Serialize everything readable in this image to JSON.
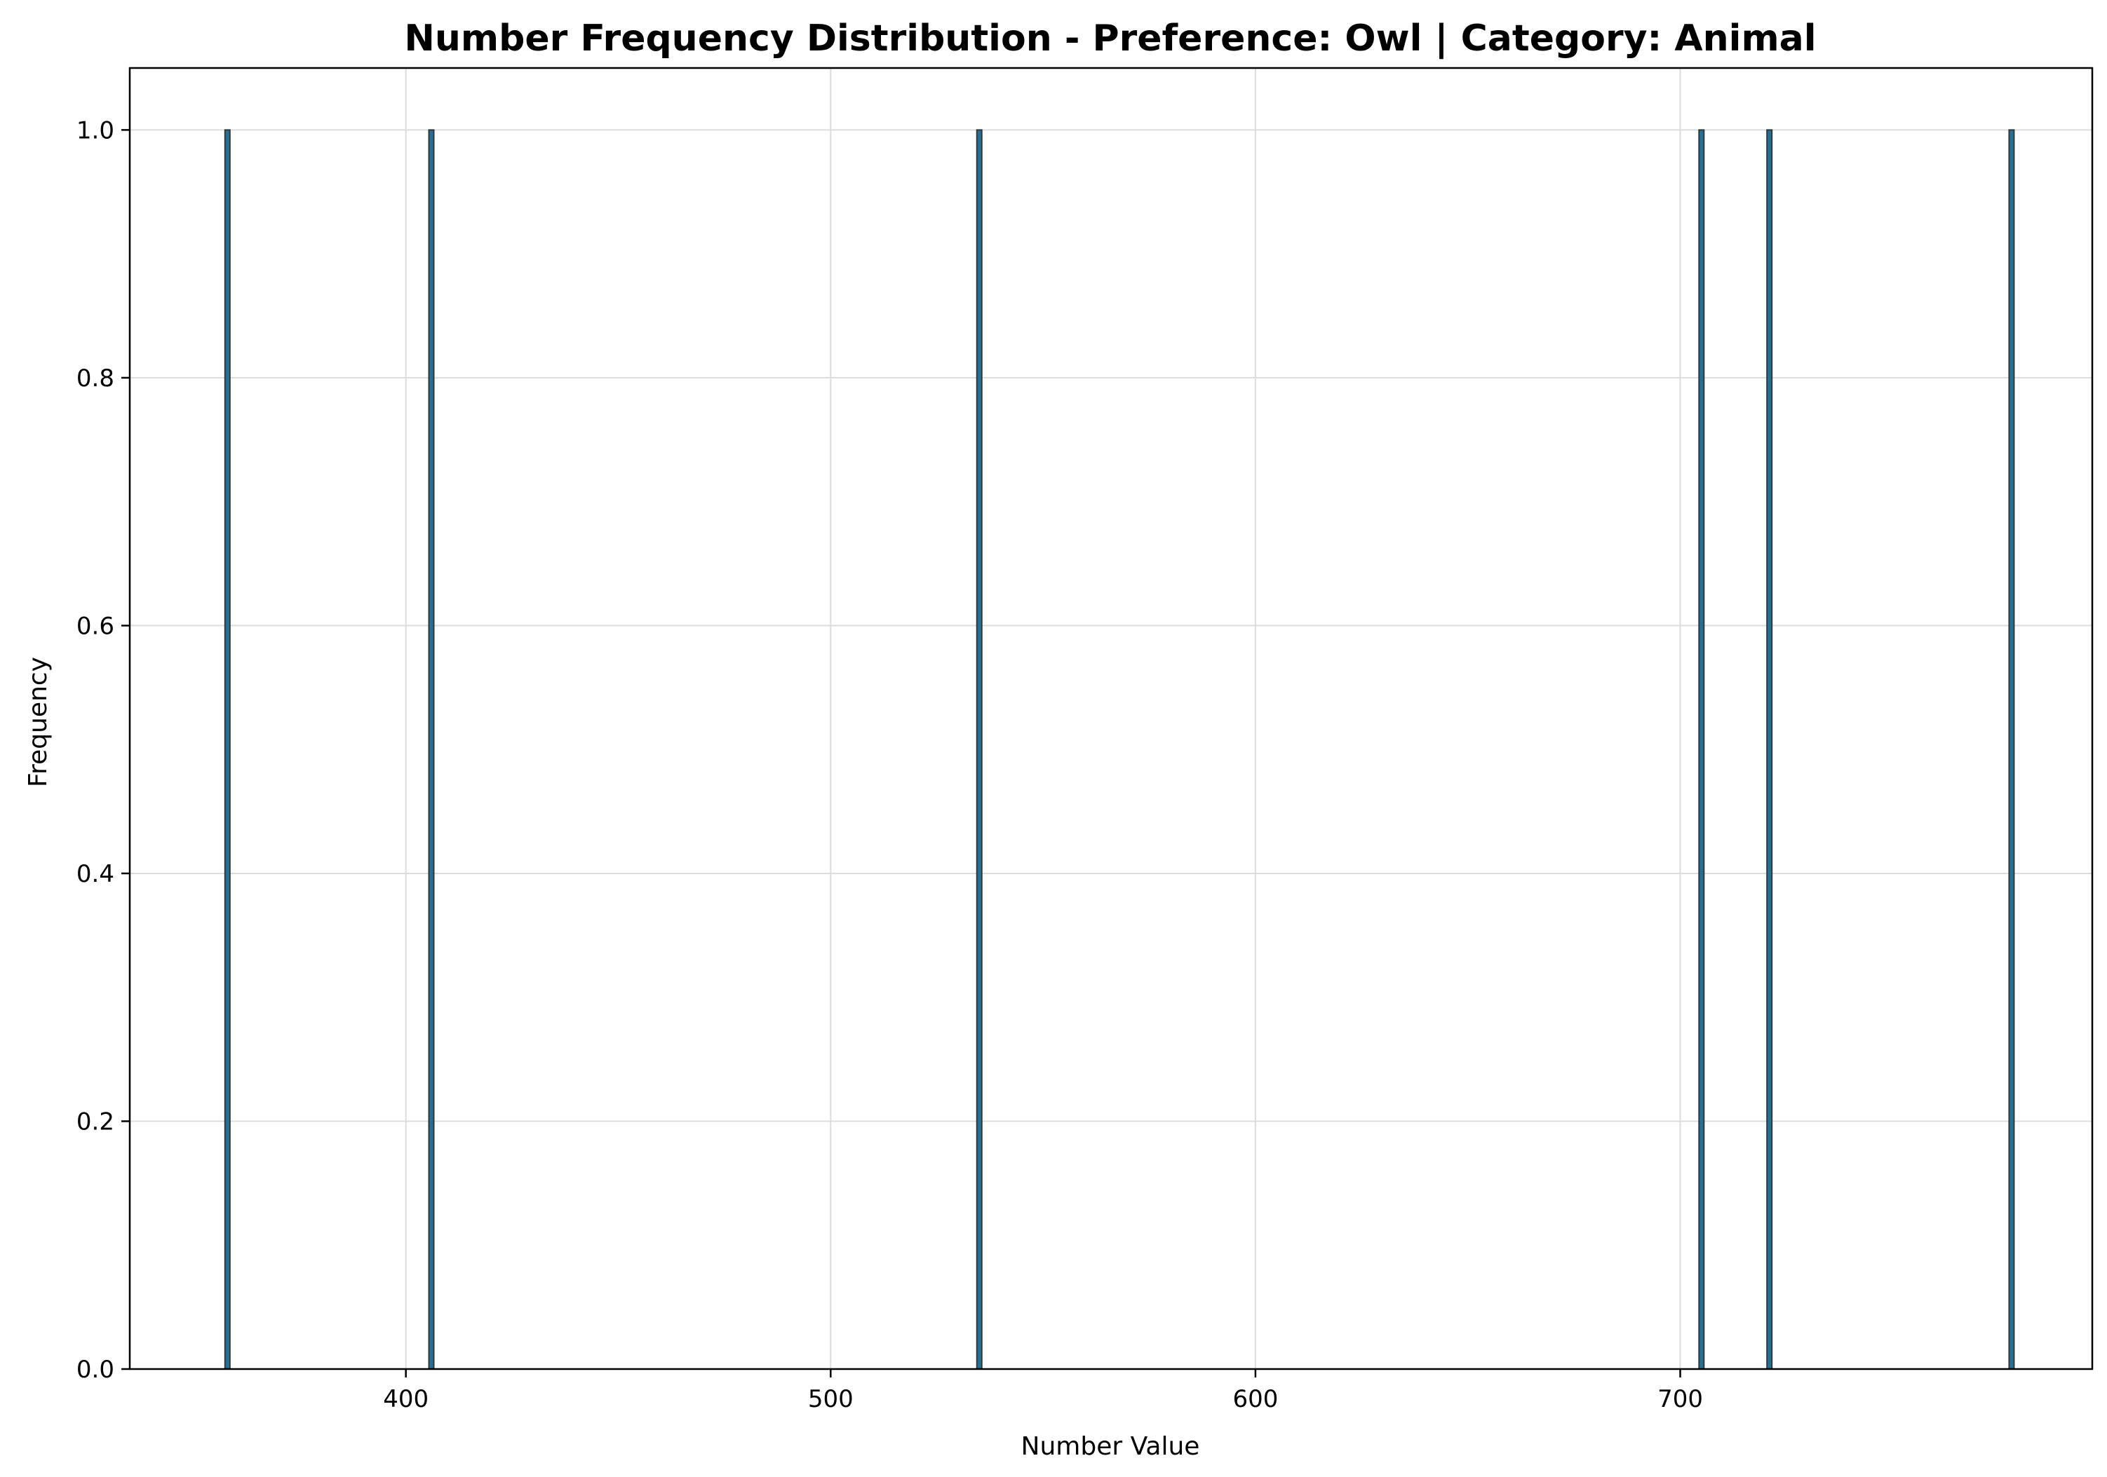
{
  "chart_data": {
    "type": "bar",
    "title": "Number Frequency Distribution - Preference: Owl | Category: Animal",
    "xlabel": "Number Value",
    "ylabel": "Frequency",
    "xlim": [
      335,
      797
    ],
    "ylim": [
      0,
      1.05
    ],
    "xticks": [
      400,
      500,
      600,
      700
    ],
    "yticks": [
      0.0,
      0.2,
      0.4,
      0.6,
      0.8,
      1.0
    ],
    "ytick_labels": [
      "0.0",
      "0.2",
      "0.4",
      "0.6",
      "0.8",
      "1.0"
    ],
    "grid": true,
    "legend": "none",
    "bar_color": "#2c6e91",
    "bar_edge_color": "#2a3a40",
    "bars": [
      {
        "x": 358,
        "value": 1
      },
      {
        "x": 406,
        "value": 1
      },
      {
        "x": 535,
        "value": 1
      },
      {
        "x": 705,
        "value": 1
      },
      {
        "x": 721,
        "value": 1
      },
      {
        "x": 778,
        "value": 1
      }
    ]
  }
}
